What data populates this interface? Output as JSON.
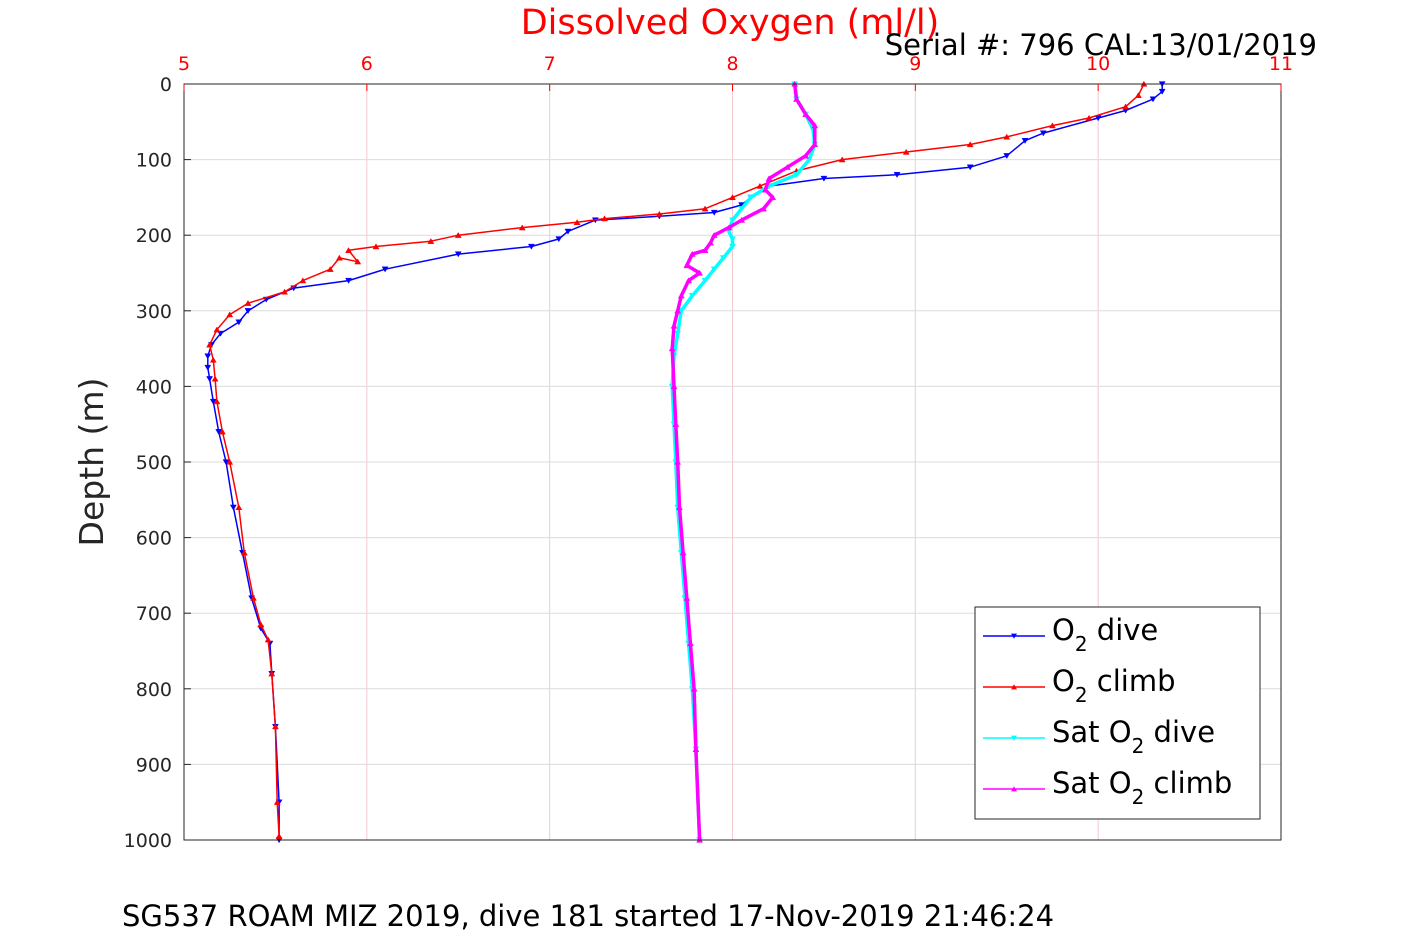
{
  "chart_data": {
    "type": "line",
    "title": "Dissolved Oxygen (ml/l)",
    "subtitle": "Serial #: 796  CAL:13/01/2019",
    "footer": "SG537 ROAM MIZ 2019, dive 181 started 17-Nov-2019 21:46:24",
    "xlabel": "",
    "ylabel": "Depth (m)",
    "xlim": [
      5,
      11
    ],
    "ylim": [
      0,
      1000
    ],
    "y_reversed": true,
    "x_axis_position": "top",
    "grid": true,
    "x_ticks": [
      "5",
      "6",
      "7",
      "8",
      "9",
      "10",
      "11"
    ],
    "y_ticks": [
      "0",
      "100",
      "200",
      "300",
      "400",
      "500",
      "600",
      "700",
      "800",
      "900",
      "1000"
    ],
    "legend_position": "bottom-right",
    "colors": {
      "o2_dive": "#0000ff",
      "o2_climb": "#ff0000",
      "sat_dive": "#00ffff",
      "sat_climb": "#ff00ff",
      "title": "#ff0000",
      "grid_x": "#f4c9cf",
      "grid_y": "#dcdcdc"
    },
    "series": [
      {
        "key": "o2_dive",
        "legend": [
          "O",
          "2",
          " dive"
        ],
        "marker": "triangle-down",
        "color": "#0000ff",
        "points": [
          [
            10.35,
            0
          ],
          [
            10.35,
            10
          ],
          [
            10.3,
            20
          ],
          [
            10.15,
            35
          ],
          [
            10.0,
            45
          ],
          [
            9.7,
            65
          ],
          [
            9.6,
            75
          ],
          [
            9.5,
            95
          ],
          [
            9.3,
            110
          ],
          [
            8.9,
            120
          ],
          [
            8.5,
            125
          ],
          [
            8.2,
            135
          ],
          [
            8.1,
            150
          ],
          [
            8.05,
            160
          ],
          [
            7.9,
            170
          ],
          [
            7.6,
            175
          ],
          [
            7.25,
            180
          ],
          [
            7.1,
            195
          ],
          [
            7.05,
            205
          ],
          [
            6.9,
            215
          ],
          [
            6.5,
            225
          ],
          [
            6.1,
            245
          ],
          [
            5.9,
            260
          ],
          [
            5.6,
            270
          ],
          [
            5.45,
            285
          ],
          [
            5.35,
            300
          ],
          [
            5.3,
            315
          ],
          [
            5.2,
            330
          ],
          [
            5.15,
            345
          ],
          [
            5.13,
            360
          ],
          [
            5.13,
            375
          ],
          [
            5.14,
            390
          ],
          [
            5.16,
            420
          ],
          [
            5.19,
            460
          ],
          [
            5.23,
            500
          ],
          [
            5.27,
            560
          ],
          [
            5.32,
            620
          ],
          [
            5.37,
            680
          ],
          [
            5.42,
            720
          ],
          [
            5.47,
            740
          ],
          [
            5.48,
            780
          ],
          [
            5.5,
            850
          ],
          [
            5.52,
            950
          ],
          [
            5.52,
            1000
          ]
        ]
      },
      {
        "key": "o2_climb",
        "legend": [
          "O",
          "2",
          " climb"
        ],
        "marker": "triangle-up",
        "color": "#ff0000",
        "points": [
          [
            10.25,
            0
          ],
          [
            10.22,
            15
          ],
          [
            10.15,
            30
          ],
          [
            9.95,
            45
          ],
          [
            9.75,
            55
          ],
          [
            9.5,
            70
          ],
          [
            9.3,
            80
          ],
          [
            8.95,
            90
          ],
          [
            8.6,
            100
          ],
          [
            8.35,
            115
          ],
          [
            8.15,
            135
          ],
          [
            8.0,
            150
          ],
          [
            7.85,
            165
          ],
          [
            7.6,
            172
          ],
          [
            7.3,
            178
          ],
          [
            7.15,
            183
          ],
          [
            6.85,
            190
          ],
          [
            6.5,
            200
          ],
          [
            6.35,
            208
          ],
          [
            6.05,
            215
          ],
          [
            5.9,
            220
          ],
          [
            5.95,
            235
          ],
          [
            5.85,
            230
          ],
          [
            5.8,
            245
          ],
          [
            5.65,
            260
          ],
          [
            5.55,
            275
          ],
          [
            5.35,
            290
          ],
          [
            5.25,
            305
          ],
          [
            5.18,
            325
          ],
          [
            5.14,
            345
          ],
          [
            5.16,
            365
          ],
          [
            5.17,
            390
          ],
          [
            5.18,
            420
          ],
          [
            5.21,
            460
          ],
          [
            5.25,
            500
          ],
          [
            5.3,
            560
          ],
          [
            5.33,
            620
          ],
          [
            5.38,
            680
          ],
          [
            5.42,
            715
          ],
          [
            5.46,
            735
          ],
          [
            5.48,
            780
          ],
          [
            5.5,
            850
          ],
          [
            5.51,
            950
          ],
          [
            5.52,
            995
          ]
        ]
      },
      {
        "key": "sat_dive",
        "legend": [
          "Sat O",
          "2",
          " dive"
        ],
        "marker": "triangle-down",
        "color": "#00ffff",
        "points": [
          [
            8.34,
            0
          ],
          [
            8.35,
            20
          ],
          [
            8.4,
            40
          ],
          [
            8.44,
            60
          ],
          [
            8.45,
            80
          ],
          [
            8.42,
            100
          ],
          [
            8.35,
            120
          ],
          [
            8.2,
            135
          ],
          [
            8.1,
            150
          ],
          [
            8.05,
            165
          ],
          [
            8.0,
            180
          ],
          [
            7.98,
            195
          ],
          [
            8.0,
            205
          ],
          [
            8.0,
            215
          ],
          [
            7.95,
            230
          ],
          [
            7.9,
            245
          ],
          [
            7.85,
            260
          ],
          [
            7.78,
            280
          ],
          [
            7.72,
            300
          ],
          [
            7.7,
            330
          ],
          [
            7.68,
            360
          ],
          [
            7.67,
            400
          ],
          [
            7.68,
            450
          ],
          [
            7.69,
            500
          ],
          [
            7.7,
            560
          ],
          [
            7.72,
            620
          ],
          [
            7.74,
            680
          ],
          [
            7.76,
            740
          ],
          [
            7.78,
            800
          ],
          [
            7.8,
            880
          ],
          [
            7.82,
            1000
          ]
        ]
      },
      {
        "key": "sat_climb",
        "legend": [
          "Sat O",
          "2",
          " climb"
        ],
        "marker": "triangle-up",
        "color": "#ff00ff",
        "points": [
          [
            8.34,
            0
          ],
          [
            8.35,
            20
          ],
          [
            8.4,
            40
          ],
          [
            8.45,
            55
          ],
          [
            8.45,
            80
          ],
          [
            8.4,
            95
          ],
          [
            8.3,
            110
          ],
          [
            8.2,
            125
          ],
          [
            8.18,
            140
          ],
          [
            8.22,
            150
          ],
          [
            8.17,
            165
          ],
          [
            8.05,
            180
          ],
          [
            7.98,
            190
          ],
          [
            7.9,
            200
          ],
          [
            7.88,
            210
          ],
          [
            7.85,
            220
          ],
          [
            7.78,
            225
          ],
          [
            7.75,
            240
          ],
          [
            7.82,
            250
          ],
          [
            7.76,
            260
          ],
          [
            7.72,
            280
          ],
          [
            7.7,
            300
          ],
          [
            7.68,
            320
          ],
          [
            7.67,
            350
          ],
          [
            7.68,
            400
          ],
          [
            7.69,
            450
          ],
          [
            7.7,
            500
          ],
          [
            7.71,
            560
          ],
          [
            7.73,
            620
          ],
          [
            7.75,
            680
          ],
          [
            7.77,
            740
          ],
          [
            7.79,
            800
          ],
          [
            7.8,
            880
          ],
          [
            7.82,
            1000
          ]
        ]
      }
    ]
  }
}
